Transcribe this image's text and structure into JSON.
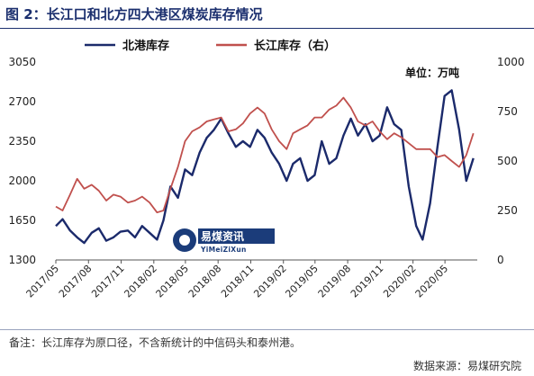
{
  "title": "图 2：长江口和北方四大港区煤炭库存情况",
  "unit_label": "单位：万吨",
  "note": "备注：长江库存为原口径，不含新统计的中信码头和泰州港。",
  "source": "数据来源：易煤研究院",
  "watermark": {
    "cn": "易煤资讯",
    "en": "YiMeiZiXun"
  },
  "colors": {
    "north": "#1b2a6b",
    "changjiang": "#c0504d",
    "title": "#1b2f6e"
  },
  "chart_data": {
    "type": "line",
    "title": "长江口和北方四大港区煤炭库存情况",
    "x_ticks": [
      "2017/05",
      "2017/08",
      "2017/11",
      "2018/02",
      "2018/05",
      "2018/08",
      "2018/11",
      "2019/02",
      "2019/05",
      "2019/08",
      "2019/11",
      "2020/02",
      "2020/05"
    ],
    "y_left": {
      "ticks": [
        1300,
        1650,
        2000,
        2350,
        2700,
        3050
      ],
      "range": [
        1300,
        3050
      ]
    },
    "y_right": {
      "ticks": [
        0,
        250,
        500,
        750,
        1000
      ],
      "range": [
        0,
        1000
      ]
    },
    "legend": [
      "北港库存",
      "长江库存（右）"
    ],
    "legend_position": "top",
    "grid": false,
    "series": [
      {
        "name": "北港库存",
        "axis": "left",
        "x": [
          "2017-05-01",
          "2017-05-20",
          "2017-06-10",
          "2017-06-30",
          "2017-07-20",
          "2017-08-10",
          "2017-08-30",
          "2017-09-20",
          "2017-10-10",
          "2017-10-30",
          "2017-11-20",
          "2017-12-10",
          "2017-12-30",
          "2018-01-20",
          "2018-02-10",
          "2018-02-28",
          "2018-03-20",
          "2018-04-10",
          "2018-04-30",
          "2018-05-20",
          "2018-06-10",
          "2018-06-30",
          "2018-07-20",
          "2018-08-10",
          "2018-08-30",
          "2018-09-20",
          "2018-10-10",
          "2018-10-30",
          "2018-11-20",
          "2018-12-10",
          "2018-12-30",
          "2019-01-20",
          "2019-02-10",
          "2019-02-28",
          "2019-03-20",
          "2019-04-10",
          "2019-04-30",
          "2019-05-20",
          "2019-06-10",
          "2019-06-30",
          "2019-07-20",
          "2019-08-10",
          "2019-08-30",
          "2019-09-20",
          "2019-10-10",
          "2019-10-30",
          "2019-11-20",
          "2019-12-10",
          "2019-12-30",
          "2020-01-20",
          "2020-02-10",
          "2020-02-28",
          "2020-03-20",
          "2020-04-10",
          "2020-04-30",
          "2020-05-20",
          "2020-06-10",
          "2020-06-30",
          "2020-07-20"
        ],
        "y": [
          1600,
          1660,
          1560,
          1500,
          1450,
          1540,
          1580,
          1470,
          1500,
          1550,
          1560,
          1500,
          1600,
          1540,
          1480,
          1650,
          1950,
          1850,
          2100,
          2050,
          2250,
          2380,
          2450,
          2550,
          2420,
          2300,
          2350,
          2300,
          2450,
          2380,
          2250,
          2150,
          2000,
          2150,
          2200,
          2000,
          2050,
          2350,
          2150,
          2200,
          2400,
          2550,
          2400,
          2500,
          2350,
          2400,
          2650,
          2500,
          2450,
          1950,
          1600,
          1480,
          1800,
          2300,
          2750,
          2800,
          2450,
          2000,
          2200
        ]
      },
      {
        "name": "长江库存（右）",
        "axis": "right",
        "x": [
          "2017-05-01",
          "2017-05-20",
          "2017-06-10",
          "2017-06-30",
          "2017-07-20",
          "2017-08-10",
          "2017-08-30",
          "2017-09-20",
          "2017-10-10",
          "2017-10-30",
          "2017-11-20",
          "2017-12-10",
          "2017-12-30",
          "2018-01-20",
          "2018-02-10",
          "2018-02-28",
          "2018-03-20",
          "2018-04-10",
          "2018-04-30",
          "2018-05-20",
          "2018-06-10",
          "2018-06-30",
          "2018-07-20",
          "2018-08-10",
          "2018-08-30",
          "2018-09-20",
          "2018-10-10",
          "2018-10-30",
          "2018-11-20",
          "2018-12-10",
          "2018-12-30",
          "2019-01-20",
          "2019-02-10",
          "2019-02-28",
          "2019-03-20",
          "2019-04-10",
          "2019-04-30",
          "2019-05-20",
          "2019-06-10",
          "2019-06-30",
          "2019-07-20",
          "2019-08-10",
          "2019-08-30",
          "2019-09-20",
          "2019-10-10",
          "2019-10-30",
          "2019-11-20",
          "2019-12-10",
          "2019-12-30",
          "2020-01-20",
          "2020-02-10",
          "2020-02-28",
          "2020-03-20",
          "2020-04-10",
          "2020-04-30",
          "2020-05-20",
          "2020-06-10",
          "2020-06-30",
          "2020-07-20"
        ],
        "y": [
          270,
          250,
          330,
          410,
          360,
          380,
          350,
          300,
          330,
          320,
          290,
          300,
          320,
          290,
          240,
          250,
          360,
          470,
          600,
          650,
          670,
          700,
          710,
          720,
          650,
          660,
          690,
          740,
          770,
          740,
          660,
          600,
          560,
          640,
          660,
          680,
          720,
          720,
          760,
          780,
          820,
          770,
          700,
          680,
          700,
          650,
          610,
          640,
          620,
          590,
          560,
          560,
          560,
          520,
          530,
          500,
          470,
          530,
          640
        ]
      }
    ]
  }
}
